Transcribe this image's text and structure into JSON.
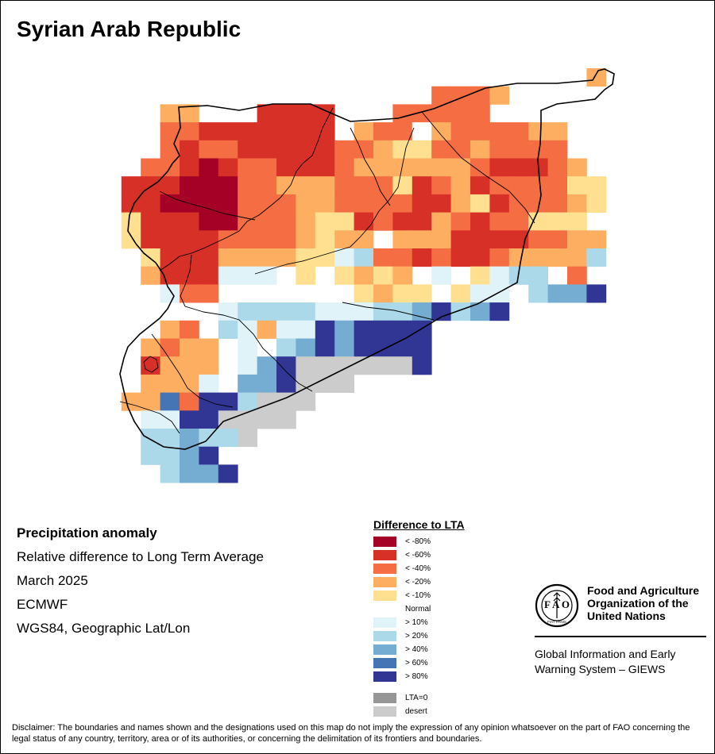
{
  "title": "Syrian Arab Republic",
  "info": {
    "heading": "Precipitation anomaly",
    "subtitle": "Relative difference to Long Term Average",
    "period": "March 2025",
    "source": "ECMWF",
    "projection": "WGS84, Geographic Lat/Lon"
  },
  "legend": {
    "title": "Difference to LTA",
    "classes": [
      {
        "label": "< -80%",
        "color": "#a50026"
      },
      {
        "label": "< -60%",
        "color": "#d73027"
      },
      {
        "label": "< -40%",
        "color": "#f46d43"
      },
      {
        "label": "< -20%",
        "color": "#fdae61"
      },
      {
        "label": "< -10%",
        "color": "#fee090"
      },
      {
        "label": "Normal",
        "color": "#ffffff"
      },
      {
        "label": "> 10%",
        "color": "#e0f3f8"
      },
      {
        "label": "> 20%",
        "color": "#abd9e9"
      },
      {
        "label": "> 40%",
        "color": "#74add1"
      },
      {
        "label": "> 60%",
        "color": "#4575b4"
      },
      {
        "label": "> 80%",
        "color": "#313695"
      }
    ],
    "extra": [
      {
        "label": "LTA=0",
        "color": "#969696"
      },
      {
        "label": "desert",
        "color": "#cccccc"
      }
    ]
  },
  "organization": {
    "name_line1": "Food and Agriculture",
    "name_line2": "Organization of the",
    "name_line3": "United Nations",
    "emblem_text": "FIAT PANIS",
    "program_line1": "Global Information and Early",
    "program_line2": "Warning System – GIEWS"
  },
  "disclaimer": "Disclaimer: The boundaries and names shown and the designations used on this map do not imply the expression of any opinion whatsoever on the part of FAO concerning the legal status of any country, territory, area or of its authorities, or concerning the delimitation of its frontiers and boundaries.",
  "grid": {
    "columns": [
      "-",
      "-",
      "-",
      "-",
      "-",
      "-",
      "-",
      "-",
      "-",
      "-",
      "-",
      "-",
      "-",
      "-",
      "-",
      "-",
      "-",
      "-",
      "-",
      "-",
      "-",
      "-",
      "-",
      "-",
      "-",
      "-"
    ],
    "rows": [
      "..........................o",
      "..................dddo.....",
      "....oo...rrrr...ddddd......",
      "....ddrrrrrrr.oddnoddddoo..",
      "....drddrrrrrddoyyddodddd..",
      "...ddrRrddrrrdoooooodrrrdo.",
      "..rrrRRRddooodddyrdorddddyy",
      "..rrRRRRdddooddddrroyrdddoy",
      "..yrrrRRdddoyyrdrrodrddyyy",
      "..yrrrrddddoyoo.ooorrrrddoo",
      "...yrrrooooyywbddrdrrdoooob",
      "...orrrwww.y.yoyo.w.ywbb.d",
      "....wdd.......yoyy.yww.bmmN",
      ".......wbbbbwwwbbmNbmN.....",
      "....od.bwowwNmNNNN.........",
      "...odoo.w.bmNmNNNN.........",
      "...rooo.wmNssssssN.........",
      "...ooow.mmNsss.............",
      "..ooxdNNbsss...............",
      "...wwNNssss................",
      "...bbmbbs..................",
      "...bbmN....................",
      "....bmmN..................."
    ]
  }
}
